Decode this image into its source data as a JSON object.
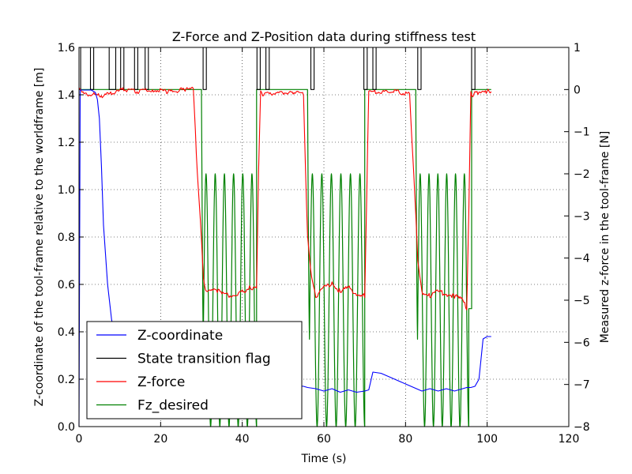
{
  "chart_data": {
    "type": "line",
    "title": "Z-Force and Z-Position data during stiffness test",
    "xlabel": "Time (s)",
    "ylabel_left": "Z-coordinate of the tool-frame relative to the worldframe [m]",
    "ylabel_right": "Measured z-force in the tool-frame [N]",
    "xlim": [
      0,
      120
    ],
    "ylim_left": [
      0.0,
      1.6
    ],
    "ylim_right": [
      -8,
      1
    ],
    "xticks": [
      "0",
      "20",
      "40",
      "60",
      "80",
      "100",
      "120"
    ],
    "yticks_left": [
      "0.0",
      "0.2",
      "0.4",
      "0.6",
      "0.8",
      "1.0",
      "1.2",
      "1.4",
      "1.6"
    ],
    "yticks_right": [
      "−8",
      "−7",
      "−6",
      "−5",
      "−4",
      "−3",
      "−2",
      "−1",
      "0",
      "1"
    ],
    "grid": true,
    "legend_position": "lower-left",
    "series": [
      {
        "name": "Z-coordinate",
        "axis": "left",
        "color": "#0000ff",
        "x": [
          0,
          0.3,
          1,
          3,
          4,
          4.5,
          5,
          5.5,
          6,
          7,
          8,
          9,
          10,
          12,
          14,
          16,
          18,
          20,
          22,
          25,
          30,
          35,
          40,
          44,
          48,
          52,
          55,
          56,
          58,
          60,
          62,
          64,
          66,
          68,
          70,
          71,
          72,
          74,
          76,
          78,
          80,
          82,
          84,
          86,
          88,
          90,
          92,
          94,
          95,
          96,
          97,
          98,
          99,
          100,
          101
        ],
        "y": [
          0.0,
          1.42,
          1.42,
          1.42,
          1.41,
          1.38,
          1.3,
          1.1,
          0.85,
          0.6,
          0.45,
          0.38,
          0.33,
          0.3,
          0.28,
          0.26,
          0.24,
          0.23,
          0.22,
          0.21,
          0.2,
          0.19,
          0.19,
          0.185,
          0.18,
          0.175,
          0.17,
          0.165,
          0.16,
          0.15,
          0.16,
          0.145,
          0.155,
          0.145,
          0.15,
          0.155,
          0.23,
          0.225,
          0.21,
          0.195,
          0.18,
          0.165,
          0.15,
          0.16,
          0.15,
          0.16,
          0.15,
          0.16,
          0.165,
          0.165,
          0.17,
          0.2,
          0.37,
          0.38,
          0.38
        ]
      },
      {
        "name": "State transition flag",
        "axis": "right",
        "color": "#000000",
        "x": [
          0,
          0.4,
          0.4,
          2.8,
          2.8,
          3.6,
          3.6,
          7.4,
          7.4,
          9.0,
          9.0,
          10.2,
          10.2,
          11.0,
          11.0,
          13.6,
          13.6,
          14.4,
          14.4,
          16.2,
          16.2,
          17.0,
          17.0,
          30.4,
          30.4,
          31.2,
          31.2,
          43.6,
          43.6,
          44.4,
          44.4,
          45.8,
          45.8,
          46.6,
          46.6,
          56.8,
          56.8,
          57.6,
          57.6,
          69.8,
          69.8,
          70.6,
          70.6,
          72.0,
          72.0,
          72.8,
          72.8,
          83.0,
          83.0,
          83.8,
          83.8,
          96.2,
          96.2,
          97.0,
          97.0
        ],
        "y": [
          0,
          0,
          1,
          1,
          0,
          0,
          1,
          1,
          0,
          0,
          1,
          1,
          0,
          0,
          1,
          1,
          0,
          0,
          1,
          1,
          0,
          0,
          1,
          1,
          0,
          0,
          1,
          1,
          0,
          0,
          1,
          1,
          0,
          0,
          1,
          1,
          0,
          0,
          1,
          1,
          0,
          0,
          1,
          1,
          0,
          0,
          1,
          1,
          0,
          0,
          1,
          1,
          0,
          0,
          1
        ]
      },
      {
        "name": "Z-force",
        "axis": "right",
        "color": "#ff0000",
        "x": [
          0,
          0.5,
          2,
          5,
          8,
          11,
          14,
          18,
          22,
          26,
          28,
          29,
          30,
          30.5,
          31,
          33,
          35,
          37,
          40,
          42,
          43.5,
          44,
          44.5,
          45,
          48,
          52,
          55,
          55.5,
          56,
          57,
          58,
          60,
          62,
          64,
          66,
          68,
          70,
          70.5,
          71,
          72,
          75,
          78,
          81,
          82,
          83,
          84,
          86,
          88,
          90,
          92,
          94,
          95,
          95.5,
          96,
          96.5,
          97,
          98,
          100,
          101
        ],
        "y": [
          0,
          0,
          -0.1,
          -0.15,
          -0.1,
          0,
          -0.05,
          0,
          -0.05,
          0,
          0,
          -2,
          -3.5,
          -4.5,
          -4.8,
          -4.7,
          -4.85,
          -4.9,
          -4.8,
          -4.7,
          -4.7,
          -2,
          0,
          -0.1,
          -0.1,
          -0.05,
          -0.1,
          -2,
          -3.5,
          -4.5,
          -4.9,
          -4.7,
          -4.6,
          -4.8,
          -4.7,
          -4.85,
          -4.9,
          -2.5,
          0,
          -0.05,
          -0.05,
          -0.05,
          -0.1,
          -2,
          -4,
          -4.8,
          -4.9,
          -4.8,
          -4.85,
          -4.9,
          -5.0,
          -5.2,
          -3,
          0,
          -0.2,
          -0.1,
          -0.1,
          -0.05,
          -0.05
        ]
      },
      {
        "name": "Fz_desired",
        "axis": "right",
        "color": "#008000",
        "segments": [
          {
            "x0": 0,
            "x1": 30,
            "y": 0
          },
          {
            "osc_start": 30,
            "osc_end": 43.5,
            "cycles": 6,
            "low": -8,
            "high": -2
          },
          {
            "x0": 43.5,
            "x1": 56,
            "y": 0
          },
          {
            "osc_start": 56,
            "osc_end": 70,
            "cycles": 6,
            "low": -8,
            "high": -2
          },
          {
            "x0": 70,
            "x1": 82.5,
            "y": 0
          },
          {
            "osc_start": 82.5,
            "osc_end": 95.5,
            "cycles": 6,
            "low": -8,
            "high": -2
          },
          {
            "x0": 95.5,
            "x1": 96.2,
            "y": -5.2
          },
          {
            "x0": 96.2,
            "x1": 101,
            "y": 0
          }
        ]
      }
    ]
  }
}
